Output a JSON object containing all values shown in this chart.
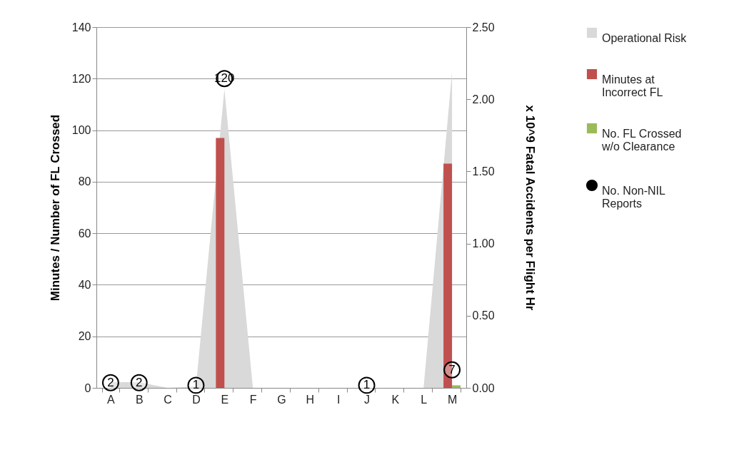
{
  "chart_data": {
    "type": "bar",
    "categories": [
      "A",
      "B",
      "C",
      "D",
      "E",
      "F",
      "G",
      "H",
      "I",
      "J",
      "K",
      "L",
      "M"
    ],
    "ylabel": "Minutes / Number of FL Crossed",
    "y2label": "x 10^9 Fatal Accidents per Flight Hr",
    "ylim": [
      0,
      140
    ],
    "yticks": [
      0,
      20,
      40,
      60,
      80,
      100,
      120,
      140
    ],
    "y2lim": [
      0,
      2.5
    ],
    "y2ticks": [
      {
        "value": 0,
        "label": "0.00"
      },
      {
        "value": 0.5,
        "label": "0.50"
      },
      {
        "value": 1,
        "label": "1.00"
      },
      {
        "value": 1.5,
        "label": "1.50"
      },
      {
        "value": 2,
        "label": "2.00"
      },
      {
        "value": 2.5,
        "label": "2.50"
      }
    ],
    "grid": "y",
    "legend": "right",
    "series": [
      {
        "name": "Operational Risk",
        "type": "area",
        "axis": "y2",
        "color": "#d9d9d9",
        "values": [
          0.04,
          0.04,
          0,
          0.01,
          2.07,
          0,
          0,
          0,
          0,
          0,
          0,
          0,
          2.19
        ]
      },
      {
        "name": "Minutes at Incorrect FL",
        "color": "#c0504d",
        "values": [
          null,
          null,
          null,
          null,
          97,
          null,
          null,
          null,
          null,
          null,
          null,
          null,
          87
        ]
      },
      {
        "name": "No. FL Crossed w/o Clearance",
        "color": "#9bbb59",
        "values": [
          null,
          null,
          null,
          null,
          null,
          null,
          null,
          null,
          null,
          null,
          null,
          null,
          1
        ]
      },
      {
        "name": "No. Non-NIL Reports",
        "type": "scatter",
        "marker": "circle",
        "color": "#000000",
        "values": [
          2,
          2,
          null,
          1,
          120,
          null,
          null,
          null,
          null,
          1,
          null,
          null,
          7
        ],
        "value_labels": [
          "2",
          "2",
          null,
          "1",
          "120",
          null,
          null,
          null,
          null,
          "1",
          null,
          null,
          "7"
        ]
      }
    ]
  }
}
